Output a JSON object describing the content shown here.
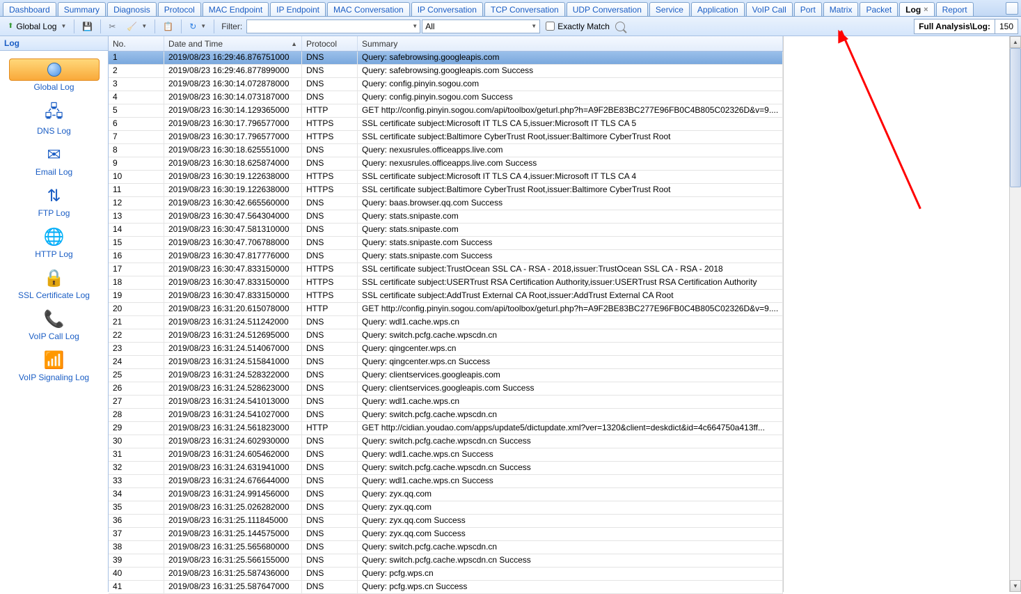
{
  "tabs": [
    {
      "label": "Dashboard",
      "active": false
    },
    {
      "label": "Summary",
      "active": false
    },
    {
      "label": "Diagnosis",
      "active": false
    },
    {
      "label": "Protocol",
      "active": false
    },
    {
      "label": "MAC Endpoint",
      "active": false
    },
    {
      "label": "IP Endpoint",
      "active": false
    },
    {
      "label": "MAC Conversation",
      "active": false
    },
    {
      "label": "IP Conversation",
      "active": false
    },
    {
      "label": "TCP Conversation",
      "active": false
    },
    {
      "label": "UDP Conversation",
      "active": false
    },
    {
      "label": "Service",
      "active": false
    },
    {
      "label": "Application",
      "active": false
    },
    {
      "label": "VoIP Call",
      "active": false
    },
    {
      "label": "Port",
      "active": false
    },
    {
      "label": "Matrix",
      "active": false
    },
    {
      "label": "Packet",
      "active": false
    },
    {
      "label": "Log",
      "active": true
    },
    {
      "label": "Report",
      "active": false
    }
  ],
  "toolbar": {
    "global_log": "Global Log",
    "filter_label": "Filter:",
    "filter_value": "",
    "filter_scope": "All",
    "exactly_match": "Exactly Match"
  },
  "status": {
    "path": "Full Analysis\\Log:",
    "count": "150"
  },
  "sidebar": {
    "header": "Log",
    "items": [
      {
        "label": "Global Log",
        "active": true
      },
      {
        "label": "DNS Log",
        "active": false
      },
      {
        "label": "Email Log",
        "active": false
      },
      {
        "label": "FTP Log",
        "active": false
      },
      {
        "label": "HTTP Log",
        "active": false
      },
      {
        "label": "SSL Certificate Log",
        "active": false
      },
      {
        "label": "VoIP Call Log",
        "active": false
      },
      {
        "label": "VoIP Signaling Log",
        "active": false
      }
    ]
  },
  "columns": {
    "no": "No.",
    "dt": "Date and Time",
    "proto": "Protocol",
    "sum": "Summary"
  },
  "rows": [
    {
      "no": "1",
      "dt": "2019/08/23 16:29:46.876751000",
      "proto": "DNS",
      "sum": "Query: safebrowsing.googleapis.com",
      "sel": true
    },
    {
      "no": "2",
      "dt": "2019/08/23 16:29:46.877899000",
      "proto": "DNS",
      "sum": "Query: safebrowsing.googleapis.com Success"
    },
    {
      "no": "3",
      "dt": "2019/08/23 16:30:14.072878000",
      "proto": "DNS",
      "sum": "Query: config.pinyin.sogou.com"
    },
    {
      "no": "4",
      "dt": "2019/08/23 16:30:14.073187000",
      "proto": "DNS",
      "sum": "Query: config.pinyin.sogou.com Success"
    },
    {
      "no": "5",
      "dt": "2019/08/23 16:30:14.129365000",
      "proto": "HTTP",
      "sum": "GET http://config.pinyin.sogou.com/api/toolbox/geturl.php?h=A9F2BE83BC277E96FB0C4B805C02326D&v=9...."
    },
    {
      "no": "6",
      "dt": "2019/08/23 16:30:17.796577000",
      "proto": "HTTPS",
      "sum": "SSL certificate subject:Microsoft IT TLS CA 5,issuer:Microsoft IT TLS CA 5"
    },
    {
      "no": "7",
      "dt": "2019/08/23 16:30:17.796577000",
      "proto": "HTTPS",
      "sum": "SSL certificate subject:Baltimore CyberTrust Root,issuer:Baltimore CyberTrust Root"
    },
    {
      "no": "8",
      "dt": "2019/08/23 16:30:18.625551000",
      "proto": "DNS",
      "sum": "Query: nexusrules.officeapps.live.com"
    },
    {
      "no": "9",
      "dt": "2019/08/23 16:30:18.625874000",
      "proto": "DNS",
      "sum": "Query: nexusrules.officeapps.live.com Success"
    },
    {
      "no": "10",
      "dt": "2019/08/23 16:30:19.122638000",
      "proto": "HTTPS",
      "sum": "SSL certificate subject:Microsoft IT TLS CA 4,issuer:Microsoft IT TLS CA 4"
    },
    {
      "no": "11",
      "dt": "2019/08/23 16:30:19.122638000",
      "proto": "HTTPS",
      "sum": "SSL certificate subject:Baltimore CyberTrust Root,issuer:Baltimore CyberTrust Root"
    },
    {
      "no": "12",
      "dt": "2019/08/23 16:30:42.665560000",
      "proto": "DNS",
      "sum": "Query: baas.browser.qq.com Success"
    },
    {
      "no": "13",
      "dt": "2019/08/23 16:30:47.564304000",
      "proto": "DNS",
      "sum": "Query: stats.snipaste.com"
    },
    {
      "no": "14",
      "dt": "2019/08/23 16:30:47.581310000",
      "proto": "DNS",
      "sum": "Query: stats.snipaste.com"
    },
    {
      "no": "15",
      "dt": "2019/08/23 16:30:47.706788000",
      "proto": "DNS",
      "sum": "Query: stats.snipaste.com Success"
    },
    {
      "no": "16",
      "dt": "2019/08/23 16:30:47.817776000",
      "proto": "DNS",
      "sum": "Query: stats.snipaste.com Success"
    },
    {
      "no": "17",
      "dt": "2019/08/23 16:30:47.833150000",
      "proto": "HTTPS",
      "sum": "SSL certificate subject:TrustOcean SSL CA - RSA - 2018,issuer:TrustOcean SSL CA - RSA - 2018"
    },
    {
      "no": "18",
      "dt": "2019/08/23 16:30:47.833150000",
      "proto": "HTTPS",
      "sum": "SSL certificate subject:USERTrust RSA Certification Authority,issuer:USERTrust RSA Certification Authority"
    },
    {
      "no": "19",
      "dt": "2019/08/23 16:30:47.833150000",
      "proto": "HTTPS",
      "sum": "SSL certificate subject:AddTrust External CA Root,issuer:AddTrust External CA Root"
    },
    {
      "no": "20",
      "dt": "2019/08/23 16:31:20.615078000",
      "proto": "HTTP",
      "sum": "GET http://config.pinyin.sogou.com/api/toolbox/geturl.php?h=A9F2BE83BC277E96FB0C4B805C02326D&v=9...."
    },
    {
      "no": "21",
      "dt": "2019/08/23 16:31:24.511242000",
      "proto": "DNS",
      "sum": "Query: wdl1.cache.wps.cn"
    },
    {
      "no": "22",
      "dt": "2019/08/23 16:31:24.512695000",
      "proto": "DNS",
      "sum": "Query: switch.pcfg.cache.wpscdn.cn"
    },
    {
      "no": "23",
      "dt": "2019/08/23 16:31:24.514067000",
      "proto": "DNS",
      "sum": "Query: qingcenter.wps.cn"
    },
    {
      "no": "24",
      "dt": "2019/08/23 16:31:24.515841000",
      "proto": "DNS",
      "sum": "Query: qingcenter.wps.cn Success"
    },
    {
      "no": "25",
      "dt": "2019/08/23 16:31:24.528322000",
      "proto": "DNS",
      "sum": "Query: clientservices.googleapis.com"
    },
    {
      "no": "26",
      "dt": "2019/08/23 16:31:24.528623000",
      "proto": "DNS",
      "sum": "Query: clientservices.googleapis.com Success"
    },
    {
      "no": "27",
      "dt": "2019/08/23 16:31:24.541013000",
      "proto": "DNS",
      "sum": "Query: wdl1.cache.wps.cn"
    },
    {
      "no": "28",
      "dt": "2019/08/23 16:31:24.541027000",
      "proto": "DNS",
      "sum": "Query: switch.pcfg.cache.wpscdn.cn"
    },
    {
      "no": "29",
      "dt": "2019/08/23 16:31:24.561823000",
      "proto": "HTTP",
      "sum": "GET http://cidian.youdao.com/apps/update5/dictupdate.xml?ver=1320&client=deskdict&id=4c664750a413ff..."
    },
    {
      "no": "30",
      "dt": "2019/08/23 16:31:24.602930000",
      "proto": "DNS",
      "sum": "Query: switch.pcfg.cache.wpscdn.cn Success"
    },
    {
      "no": "31",
      "dt": "2019/08/23 16:31:24.605462000",
      "proto": "DNS",
      "sum": "Query: wdl1.cache.wps.cn Success"
    },
    {
      "no": "32",
      "dt": "2019/08/23 16:31:24.631941000",
      "proto": "DNS",
      "sum": "Query: switch.pcfg.cache.wpscdn.cn Success"
    },
    {
      "no": "33",
      "dt": "2019/08/23 16:31:24.676644000",
      "proto": "DNS",
      "sum": "Query: wdl1.cache.wps.cn Success"
    },
    {
      "no": "34",
      "dt": "2019/08/23 16:31:24.991456000",
      "proto": "DNS",
      "sum": "Query: zyx.qq.com"
    },
    {
      "no": "35",
      "dt": "2019/08/23 16:31:25.026282000",
      "proto": "DNS",
      "sum": "Query: zyx.qq.com"
    },
    {
      "no": "36",
      "dt": "2019/08/23 16:31:25.111845000",
      "proto": "DNS",
      "sum": "Query: zyx.qq.com Success"
    },
    {
      "no": "37",
      "dt": "2019/08/23 16:31:25.144575000",
      "proto": "DNS",
      "sum": "Query: zyx.qq.com Success"
    },
    {
      "no": "38",
      "dt": "2019/08/23 16:31:25.565680000",
      "proto": "DNS",
      "sum": "Query: switch.pcfg.cache.wpscdn.cn"
    },
    {
      "no": "39",
      "dt": "2019/08/23 16:31:25.566155000",
      "proto": "DNS",
      "sum": "Query: switch.pcfg.cache.wpscdn.cn Success"
    },
    {
      "no": "40",
      "dt": "2019/08/23 16:31:25.587436000",
      "proto": "DNS",
      "sum": "Query: pcfg.wps.cn"
    },
    {
      "no": "41",
      "dt": "2019/08/23 16:31:25.587647000",
      "proto": "DNS",
      "sum": "Query: pcfg.wps.cn Success"
    }
  ],
  "colors": {
    "tab_border": "#7da2ce",
    "link": "#1a5dc4",
    "sel_row_top": "#9bc0ea",
    "sel_row_bot": "#7aa8dd",
    "arrow": "#ff0000"
  }
}
